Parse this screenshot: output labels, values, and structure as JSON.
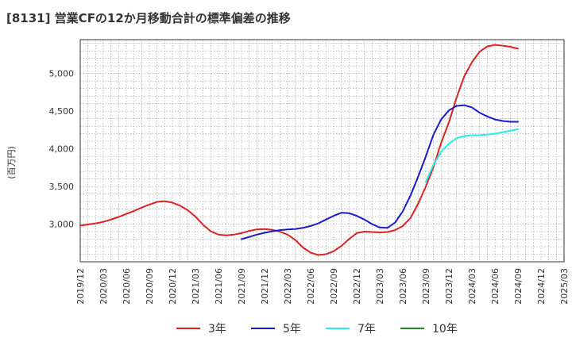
{
  "title": "[8131]  営業CFの12か月移動合計の標準偏差の推移",
  "chart_data": {
    "type": "line",
    "title": "[8131]  営業CFの12か月移動合計の標準偏差の推移",
    "ylabel": "(百万円)",
    "xlabel": "",
    "ylim": [
      2500,
      5450
    ],
    "xlim": [
      "2019/12",
      "2025/03"
    ],
    "y_ticks": [
      3000,
      3500,
      4000,
      4500,
      5000
    ],
    "y_tick_labels": [
      "3,000",
      "3,500",
      "4,000",
      "4,500",
      "5,000"
    ],
    "x_ticks": [
      "2019/12",
      "2020/03",
      "2020/06",
      "2020/09",
      "2020/12",
      "2021/03",
      "2021/06",
      "2021/09",
      "2021/12",
      "2022/03",
      "2022/06",
      "2022/09",
      "2022/12",
      "2023/03",
      "2023/06",
      "2023/09",
      "2023/12",
      "2024/03",
      "2024/06",
      "2024/09",
      "2024/12",
      "2025/03"
    ],
    "grid": true,
    "legend_position": "bottom",
    "series": [
      {
        "name": "3年",
        "color": "#dd2222",
        "x": [
          "2019/12",
          "2020/01",
          "2020/02",
          "2020/03",
          "2020/04",
          "2020/05",
          "2020/06",
          "2020/07",
          "2020/08",
          "2020/09",
          "2020/10",
          "2020/11",
          "2020/12",
          "2021/01",
          "2021/02",
          "2021/03",
          "2021/04",
          "2021/05",
          "2021/06",
          "2021/07",
          "2021/08",
          "2021/09",
          "2021/10",
          "2021/11",
          "2021/12",
          "2022/01",
          "2022/02",
          "2022/03",
          "2022/04",
          "2022/05",
          "2022/06",
          "2022/07",
          "2022/08",
          "2022/09",
          "2022/10",
          "2022/11",
          "2022/12",
          "2023/01",
          "2023/02",
          "2023/03",
          "2023/04",
          "2023/05",
          "2023/06",
          "2023/07",
          "2023/08",
          "2023/09",
          "2023/10",
          "2023/11",
          "2023/12",
          "2024/01",
          "2024/02",
          "2024/03",
          "2024/04",
          "2024/05",
          "2024/06",
          "2024/07",
          "2024/08",
          "2024/09"
        ],
        "values": [
          2980,
          2995,
          3010,
          3030,
          3060,
          3095,
          3135,
          3175,
          3220,
          3260,
          3295,
          3305,
          3285,
          3245,
          3185,
          3100,
          2990,
          2905,
          2860,
          2850,
          2860,
          2880,
          2910,
          2930,
          2935,
          2925,
          2900,
          2860,
          2790,
          2690,
          2620,
          2590,
          2600,
          2640,
          2710,
          2800,
          2880,
          2900,
          2895,
          2890,
          2895,
          2920,
          2975,
          3080,
          3270,
          3500,
          3760,
          4080,
          4350,
          4680,
          4960,
          5150,
          5290,
          5360,
          5380,
          5370,
          5355,
          5330
        ]
      },
      {
        "name": "5年",
        "color": "#1a1acc",
        "x": [
          "2021/09",
          "2021/10",
          "2021/11",
          "2021/12",
          "2022/01",
          "2022/02",
          "2022/03",
          "2022/04",
          "2022/05",
          "2022/06",
          "2022/07",
          "2022/08",
          "2022/09",
          "2022/10",
          "2022/11",
          "2022/12",
          "2023/01",
          "2023/02",
          "2023/03",
          "2023/04",
          "2023/05",
          "2023/06",
          "2023/07",
          "2023/08",
          "2023/09",
          "2023/10",
          "2023/11",
          "2023/12",
          "2024/01",
          "2024/02",
          "2024/03",
          "2024/04",
          "2024/05",
          "2024/06",
          "2024/07",
          "2024/08",
          "2024/09"
        ],
        "values": [
          2800,
          2830,
          2860,
          2885,
          2905,
          2920,
          2930,
          2935,
          2950,
          2975,
          3010,
          3060,
          3110,
          3150,
          3145,
          3110,
          3060,
          3000,
          2955,
          2950,
          3020,
          3170,
          3380,
          3630,
          3900,
          4190,
          4390,
          4510,
          4570,
          4580,
          4550,
          4480,
          4430,
          4390,
          4370,
          4360,
          4360
        ]
      },
      {
        "name": "7年",
        "color": "#22eeee",
        "x": [
          "2023/09",
          "2023/10",
          "2023/11",
          "2023/12",
          "2024/01",
          "2024/02",
          "2024/03",
          "2024/04",
          "2024/05",
          "2024/06",
          "2024/07",
          "2024/08",
          "2024/09"
        ],
        "values": [
          3560,
          3790,
          3960,
          4070,
          4140,
          4170,
          4180,
          4180,
          4190,
          4200,
          4220,
          4240,
          4260
        ]
      },
      {
        "name": "10年",
        "color": "#228822",
        "x": [],
        "values": []
      }
    ]
  }
}
